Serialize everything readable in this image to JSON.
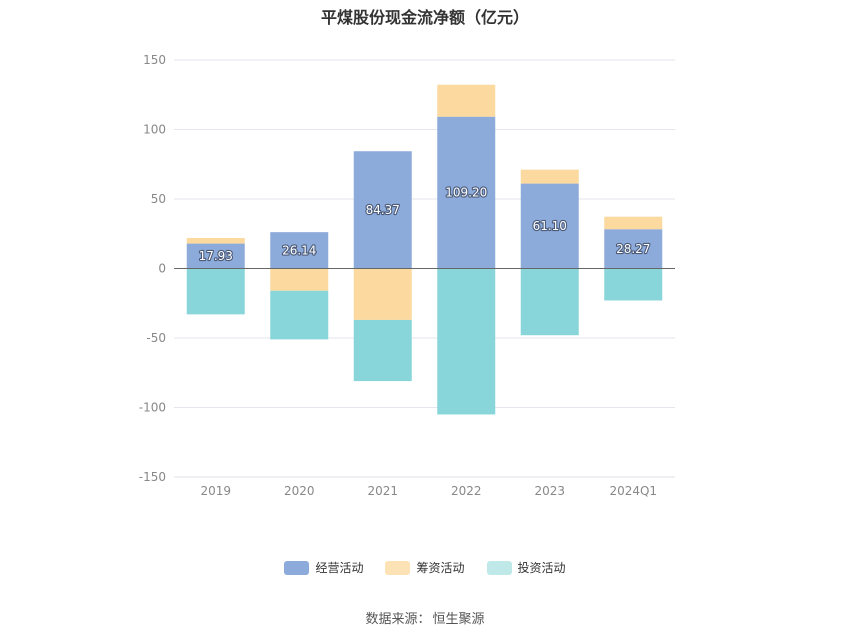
{
  "chart_data": {
    "type": "bar",
    "stacked": true,
    "title": "平煤股份现金流净额（亿元）",
    "categories": [
      "2019",
      "2020",
      "2021",
      "2022",
      "2023",
      "2024Q1"
    ],
    "ylim": [
      -150,
      150
    ],
    "yticks": [
      150,
      100,
      50,
      0,
      -50,
      -100,
      -150
    ],
    "grid": true,
    "legend_position": "bottom",
    "series": [
      {
        "name": "经营活动",
        "color": "#8dabda",
        "values": [
          17.93,
          26.14,
          84.37,
          109.2,
          61.1,
          28.27
        ],
        "labels": [
          "17.93",
          "26.14",
          "84.37",
          "109.20",
          "61.10",
          "28.27"
        ]
      },
      {
        "name": "筹资活动",
        "color": "#fcd99e",
        "values": [
          4,
          -16,
          -37,
          23,
          10,
          9
        ]
      },
      {
        "name": "投资活动",
        "color": "#88d6d9",
        "values": [
          -33,
          -35,
          -44,
          -105,
          -48,
          -23
        ]
      }
    ]
  },
  "legend": {
    "items": [
      {
        "label": "经营活动",
        "color": "#8dabda"
      },
      {
        "label": "筹资活动",
        "color": "#fce2b5"
      },
      {
        "label": "投资活动",
        "color": "#bfe8e9"
      }
    ]
  },
  "source": {
    "label": "数据来源：",
    "value": "恒生聚源"
  }
}
